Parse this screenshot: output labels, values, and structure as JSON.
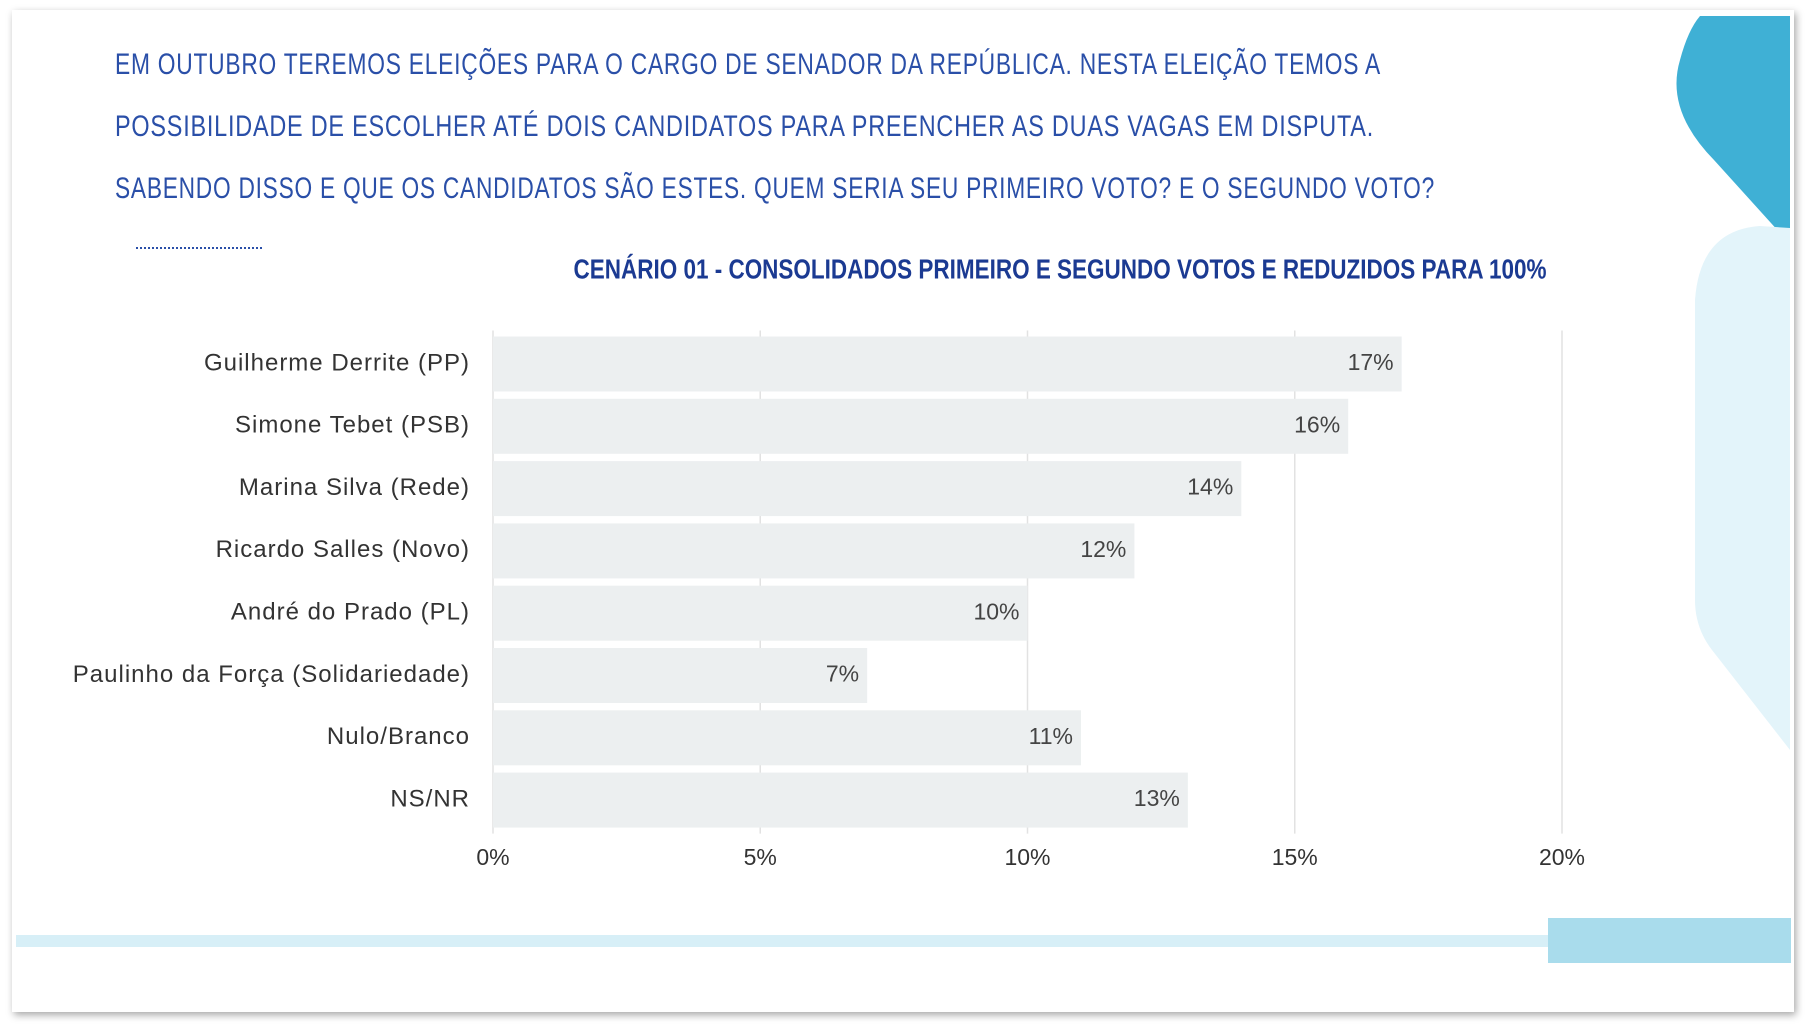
{
  "question": {
    "lines": [
      "EM OUTUBRO TEREMOS ELEIÇÕES PARA O CARGO DE SENADOR DA REPÚBLICA. NESTA ELEIÇÃO TEMOS A",
      "POSSIBILIDADE DE ESCOLHER ATÉ DOIS CANDIDATOS PARA PREENCHER AS DUAS VAGAS EM DISPUTA.",
      "SABENDO DISSO E QUE OS CANDIDATOS SÃO ESTES. QUEM SERIA SEU PRIMEIRO VOTO? E O SEGUNDO VOTO?"
    ]
  },
  "chart_data": {
    "type": "bar",
    "orientation": "horizontal",
    "title": "CENÁRIO 01 - CONSOLIDADOS PRIMEIRO E SEGUNDO VOTOS E REDUZIDOS PARA 100%",
    "categories": [
      "Guilherme Derrite (PP)",
      "Simone Tebet (PSB)",
      "Marina Silva (Rede)",
      "Ricardo Salles (Novo)",
      "André do Prado (PL)",
      "Paulinho da Força (Solidariedade)",
      "Nulo/Branco",
      "NS/NR"
    ],
    "values": [
      17,
      16,
      14,
      12,
      10,
      7,
      11,
      13
    ],
    "value_labels": [
      "17%",
      "16%",
      "14%",
      "12%",
      "10%",
      "7%",
      "11%",
      "13%"
    ],
    "color": "#eceff0",
    "xlim": [
      0,
      20
    ],
    "xticks": [
      {
        "value": 0,
        "label": "0%"
      },
      {
        "value": 5,
        "label": "5%"
      },
      {
        "value": 10,
        "label": "10%"
      },
      {
        "value": 15,
        "label": "15%"
      },
      {
        "value": 20,
        "label": "20%"
      }
    ],
    "grid": true
  }
}
